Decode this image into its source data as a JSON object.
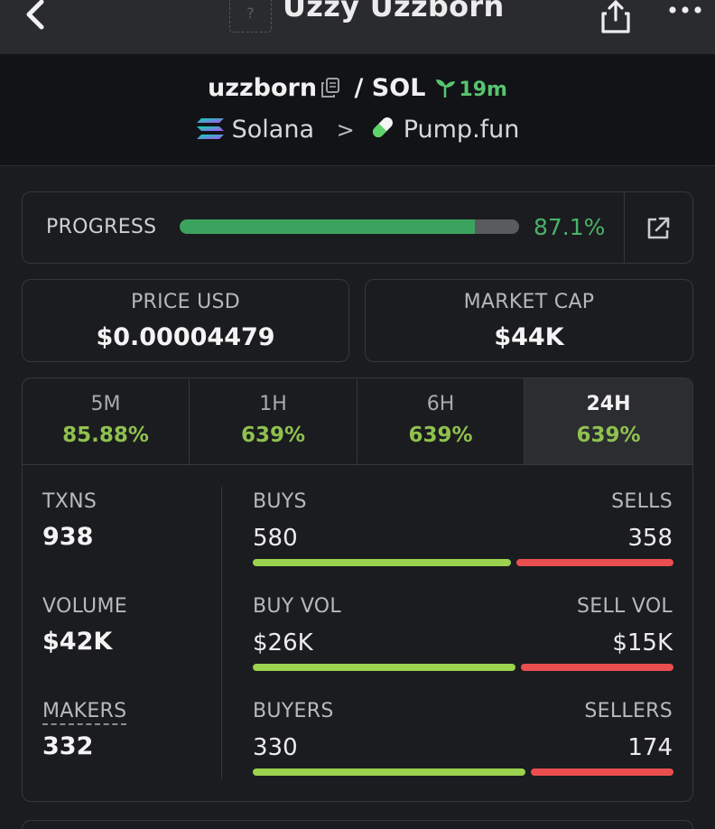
{
  "topbar": {
    "title": "Uzzy Uzzborn",
    "thumb_placeholder": "?",
    "icons": {
      "back": "chevron-left-icon",
      "share": "share-icon",
      "more": "more-dots-icon"
    }
  },
  "pair": {
    "token": "uzzborn",
    "separator": "/",
    "quote": "SOL",
    "age": "19m",
    "chain": "Solana",
    "chain_separator": ">",
    "dex": "Pump.fun",
    "icons": {
      "copy": "copy-icon",
      "age": "sprout-icon",
      "chain": "solana-logo-icon",
      "dex": "pill-icon"
    }
  },
  "progress": {
    "label": "PROGRESS",
    "value_text": "87.1%",
    "fraction": 0.871,
    "icon": "external-link-icon",
    "colors": {
      "fill": "#3ca35f",
      "text": "#48b36a"
    }
  },
  "stats": {
    "price": {
      "label": "PRICE USD",
      "value": "$0.00004479"
    },
    "market_cap": {
      "label": "MARKET CAP",
      "value": "$44K"
    }
  },
  "timeframes": [
    {
      "label": "5M",
      "change": "85.88%",
      "active": false
    },
    {
      "label": "1H",
      "change": "639%",
      "active": false
    },
    {
      "label": "6H",
      "change": "639%",
      "active": false
    },
    {
      "label": "24H",
      "change": "639%",
      "active": true
    }
  ],
  "metrics": [
    {
      "label": "TXNS",
      "value": "938"
    },
    {
      "label": "VOLUME",
      "value": "$42K"
    },
    {
      "label": "MAKERS",
      "value": "332"
    }
  ],
  "splits": [
    {
      "left_label": "BUYS",
      "right_label": "SELLS",
      "left_value": "580",
      "right_value": "358",
      "buy_share": 0.62
    },
    {
      "left_label": "BUY VOL",
      "right_label": "SELL VOL",
      "left_value": "$26K",
      "right_value": "$15K",
      "buy_share": 0.63
    },
    {
      "left_label": "BUYERS",
      "right_label": "SELLERS",
      "left_value": "330",
      "right_value": "174",
      "buy_share": 0.655
    }
  ],
  "colors": {
    "positive": "#8fc14f",
    "buy_bar": "#9bd24e",
    "sell_bar": "#ea4e4e"
  }
}
